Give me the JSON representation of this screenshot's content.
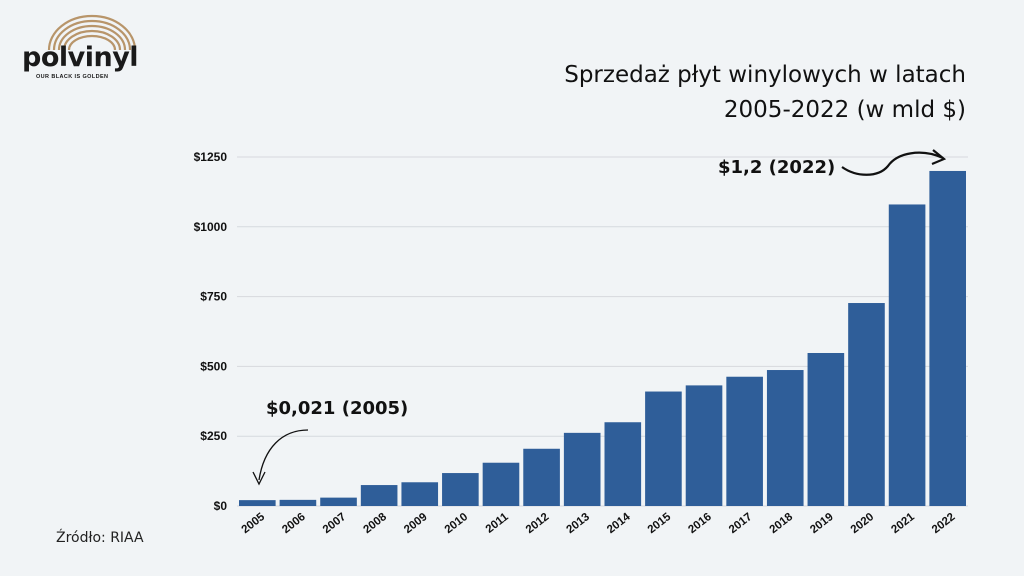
{
  "logo": {
    "wordmark": "polvinyl",
    "tagline": "OUR BLACK IS GOLDEN"
  },
  "title_line1": "Sprzedaż płyt winylowych w latach",
  "title_line2": "2005-2022 (w mld $)",
  "source": "Źródło: RIAA",
  "colors": {
    "bar": "#2f5e99",
    "grid": "#d6d9dd",
    "background": "#f1f4f6"
  },
  "chart_data": {
    "type": "bar",
    "title": "Sprzedaż płyt winylowych w latach 2005-2022 (w mld $)",
    "categories": [
      "2005",
      "2006",
      "2007",
      "2008",
      "2009",
      "2010",
      "2011",
      "2012",
      "2013",
      "2014",
      "2015",
      "2016",
      "2017",
      "2018",
      "2019",
      "2020",
      "2021",
      "2022"
    ],
    "values": [
      21,
      22,
      30,
      75,
      85,
      118,
      155,
      205,
      262,
      300,
      410,
      432,
      463,
      487,
      548,
      727,
      1080,
      1200
    ],
    "ylim": [
      0,
      1250
    ],
    "yticks": [
      0,
      250,
      500,
      750,
      1000,
      1250
    ],
    "ytick_labels": [
      "$0",
      "$250",
      "$500",
      "$750",
      "$1000",
      "$1250"
    ],
    "grid": true,
    "annotations": [
      {
        "text": "$0,021 (2005)",
        "target": "2005"
      },
      {
        "text": "$1,2 (2022)",
        "target": "2022"
      }
    ]
  }
}
